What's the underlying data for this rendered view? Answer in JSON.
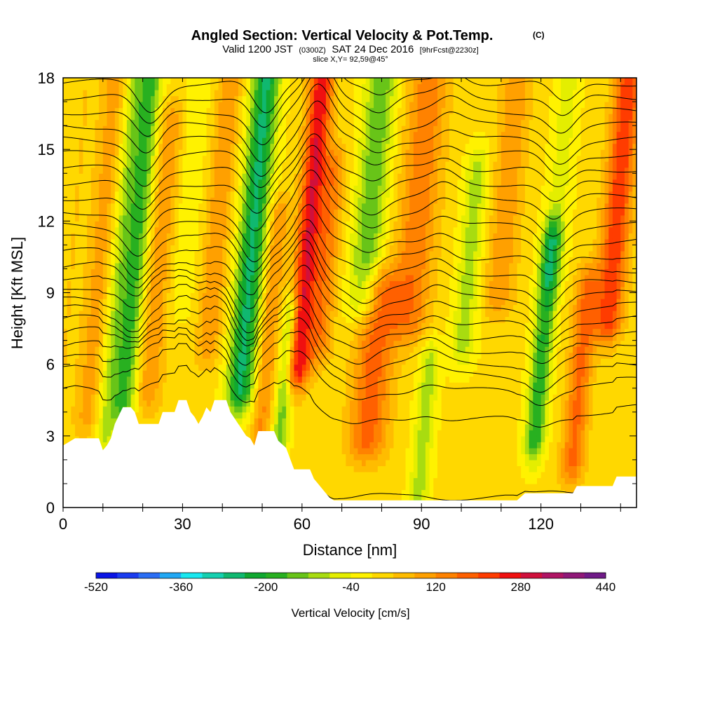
{
  "chart_data": {
    "type": "heatmap",
    "title": "Angled Section: Vertical Velocity & Pot.Temp.",
    "title_unit": "(C)",
    "subtitle": {
      "prefix": "Valid 1200 JST",
      "utc": "(0300Z)",
      "date": "SAT 24 Dec 2016",
      "forecast": "[9hrFcst@2230z]"
    },
    "slice_label": "slice X,Y= 92,59@45°",
    "xlabel": "Distance [nm]",
    "ylabel": "Height [Kft MSL]",
    "xlim": [
      0,
      144
    ],
    "ylim": [
      0,
      18
    ],
    "x_ticks": [
      0,
      30,
      60,
      90,
      120
    ],
    "y_ticks": [
      0,
      3,
      6,
      9,
      12,
      15,
      18
    ],
    "colorbar": {
      "label": "Vertical Velocity [cm/s]",
      "tick_values": [
        -520,
        -360,
        -200,
        -40,
        120,
        280,
        440
      ],
      "range": [
        -520,
        440
      ],
      "step": 40,
      "colors": [
        "#0a14e6",
        "#1a3cf0",
        "#2a6ef5",
        "#20a8f5",
        "#18e8f0",
        "#14d0b0",
        "#10b870",
        "#10a830",
        "#28b020",
        "#68c418",
        "#a8dc10",
        "#e4ee00",
        "#fff200",
        "#ffd800",
        "#ffbc00",
        "#ffa000",
        "#ff8200",
        "#ff6000",
        "#ff3c00",
        "#f01010",
        "#d0103c",
        "#b01464",
        "#901878",
        "#701a88"
      ]
    },
    "velocity_field": {
      "base_value": 10,
      "features": [
        {
          "x": 0,
          "z_bottom": 3,
          "z_top": 18,
          "value": 30,
          "width": 3
        },
        {
          "x": 7,
          "z_bottom": 4,
          "z_top": 18,
          "value": 90,
          "width": 3
        },
        {
          "x": 12,
          "z_bottom": 3,
          "z_top": 18,
          "value": -90,
          "width": 2.5
        },
        {
          "x": 16,
          "z_bottom": 4.5,
          "z_top": 18,
          "value": -190,
          "width": 3
        },
        {
          "x": 22,
          "z_bottom": 5,
          "z_top": 16,
          "value": 100,
          "width": 3.5
        },
        {
          "x": 28,
          "z_bottom": 9,
          "z_top": 17,
          "value": -50,
          "width": 3
        },
        {
          "x": 36,
          "z_bottom": 7,
          "z_top": 18,
          "value": 110,
          "width": 3
        },
        {
          "x": 45,
          "z_bottom": 5,
          "z_top": 18,
          "value": -260,
          "width": 3.5
        },
        {
          "x": 51,
          "z_bottom": 2,
          "z_top": 12,
          "value": 120,
          "width": 2.5
        },
        {
          "x": 56,
          "z_bottom": 1,
          "z_top": 8,
          "value": -150,
          "width": 2
        },
        {
          "x": 59,
          "z_bottom": 6,
          "z_top": 18,
          "value": 270,
          "width": 3
        },
        {
          "x": 64,
          "z_bottom": 7,
          "z_top": 14,
          "value": 130,
          "width": 3
        },
        {
          "x": 74,
          "z_bottom": 9,
          "z_top": 18,
          "value": -160,
          "width": 4
        },
        {
          "x": 78,
          "z_bottom": 3,
          "z_top": 9,
          "value": 170,
          "width": 5
        },
        {
          "x": 86,
          "z_bottom": 8,
          "z_top": 18,
          "value": 140,
          "width": 5
        },
        {
          "x": 92,
          "z_bottom": 0,
          "z_top": 6,
          "value": -110,
          "width": 2.5
        },
        {
          "x": 100,
          "z_bottom": 7,
          "z_top": 14,
          "value": -110,
          "width": 3
        },
        {
          "x": 108,
          "z_bottom": 9,
          "z_top": 18,
          "value": 100,
          "width": 4
        },
        {
          "x": 120,
          "z_bottom": 3,
          "z_top": 11,
          "value": -210,
          "width": 2.5
        },
        {
          "x": 121,
          "z_bottom": 10,
          "z_top": 18,
          "value": -70,
          "width": 3
        },
        {
          "x": 130,
          "z_bottom": 2,
          "z_top": 9,
          "value": 160,
          "width": 3
        },
        {
          "x": 136,
          "z_bottom": 8,
          "z_top": 18,
          "value": 220,
          "width": 3.5
        }
      ]
    },
    "terrain_height": [
      [
        0,
        2.6
      ],
      [
        3,
        2.9
      ],
      [
        9,
        2.9
      ],
      [
        10,
        2.4
      ],
      [
        11,
        2.6
      ],
      [
        12,
        2.9
      ],
      [
        13,
        3.5
      ],
      [
        15,
        4.2
      ],
      [
        17,
        4.2
      ],
      [
        18,
        4.0
      ],
      [
        19,
        3.5
      ],
      [
        24,
        3.5
      ],
      [
        25,
        4.0
      ],
      [
        28,
        4.0
      ],
      [
        29,
        4.5
      ],
      [
        31,
        4.5
      ],
      [
        32,
        4.0
      ],
      [
        33,
        3.8
      ],
      [
        34,
        3.5
      ],
      [
        35,
        3.8
      ],
      [
        36,
        4.2
      ],
      [
        37,
        4.0
      ],
      [
        38,
        4.5
      ],
      [
        41,
        4.5
      ],
      [
        42,
        4.0
      ],
      [
        44,
        3.5
      ],
      [
        46,
        3.0
      ],
      [
        47,
        2.9
      ],
      [
        48,
        2.6
      ],
      [
        49,
        3.2
      ],
      [
        53,
        3.2
      ],
      [
        54,
        2.8
      ],
      [
        56,
        2.5
      ],
      [
        58,
        1.6
      ],
      [
        62,
        1.6
      ],
      [
        63,
        1.2
      ],
      [
        64,
        1.0
      ],
      [
        65,
        0.8
      ],
      [
        66,
        0.6
      ],
      [
        67,
        0.4
      ],
      [
        68,
        0.3
      ],
      [
        114,
        0.3
      ],
      [
        116,
        0.6
      ],
      [
        128,
        0.6
      ],
      [
        129,
        0.9
      ],
      [
        138,
        0.9
      ],
      [
        139,
        1.3
      ],
      [
        144,
        1.3
      ]
    ],
    "theta_contour_levels_kft": [
      0.4,
      1.3,
      4.3,
      5.4,
      6.0,
      6.5,
      7.0,
      7.5,
      8.0,
      8.5,
      9.0,
      9.5,
      10.0,
      10.6,
      11.2,
      11.8,
      12.4,
      13.0,
      13.6,
      14.2,
      14.8,
      15.4,
      16.0,
      16.6,
      17.2,
      17.8
    ]
  }
}
